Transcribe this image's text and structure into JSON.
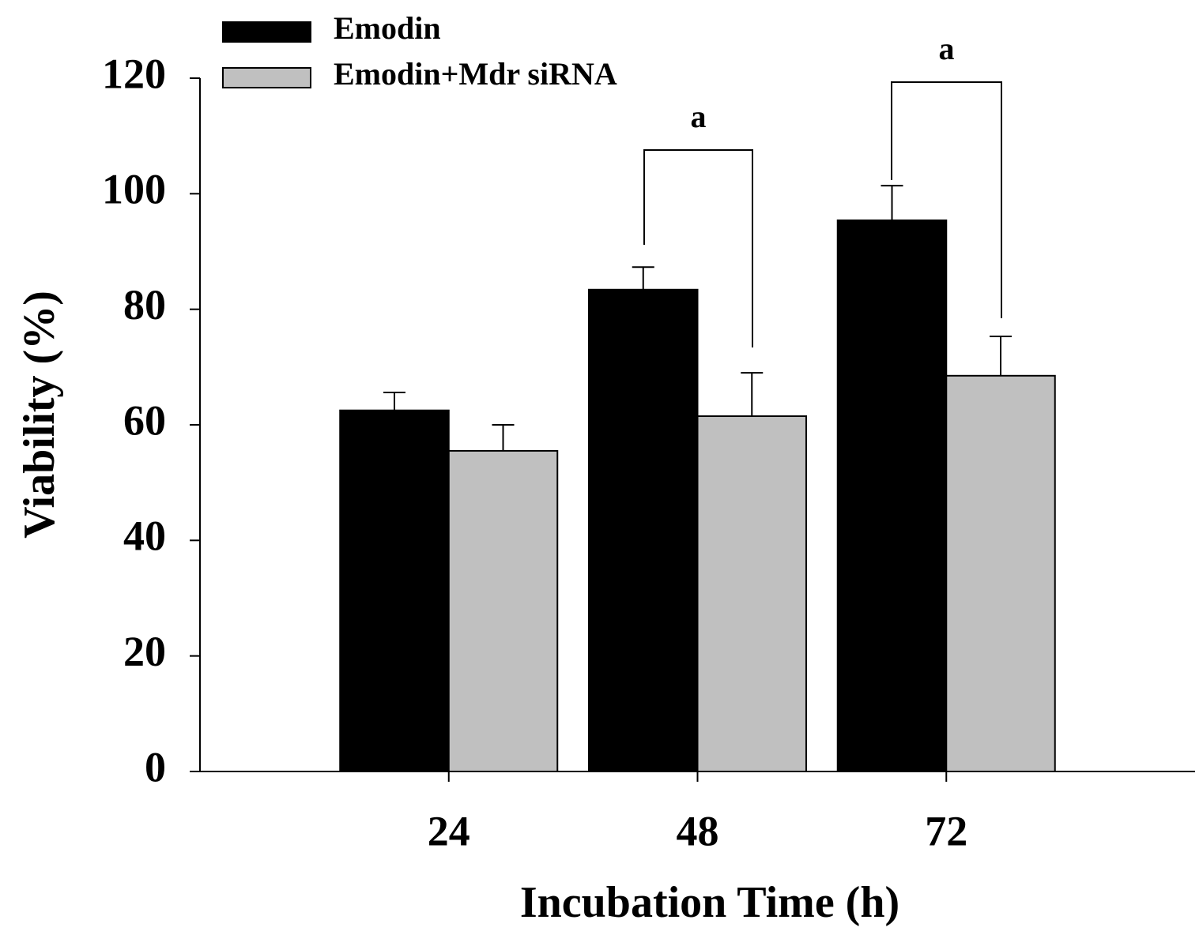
{
  "chart_data": {
    "type": "bar",
    "x_label": "Incubation Time (h)",
    "y_label": "Viability (%)",
    "categories": [
      "24",
      "48",
      "72"
    ],
    "series": [
      {
        "name": "Emodin",
        "color": "#000000",
        "values": [
          62.5,
          83.4,
          95.4
        ],
        "errors": [
          3.1,
          3.9,
          6.0
        ]
      },
      {
        "name": "Emodin+Mdr siRNA",
        "color": "#c0c0c0",
        "values": [
          55.5,
          61.5,
          68.5
        ],
        "errors": [
          4.5,
          7.5,
          6.8
        ]
      }
    ],
    "ylim": [
      0,
      120
    ],
    "yticks": [
      0,
      20,
      40,
      60,
      80,
      100,
      120
    ],
    "annotations": [
      {
        "text": "a",
        "category": "48"
      },
      {
        "text": "a",
        "category": "72"
      }
    ],
    "legend": "top-left"
  }
}
